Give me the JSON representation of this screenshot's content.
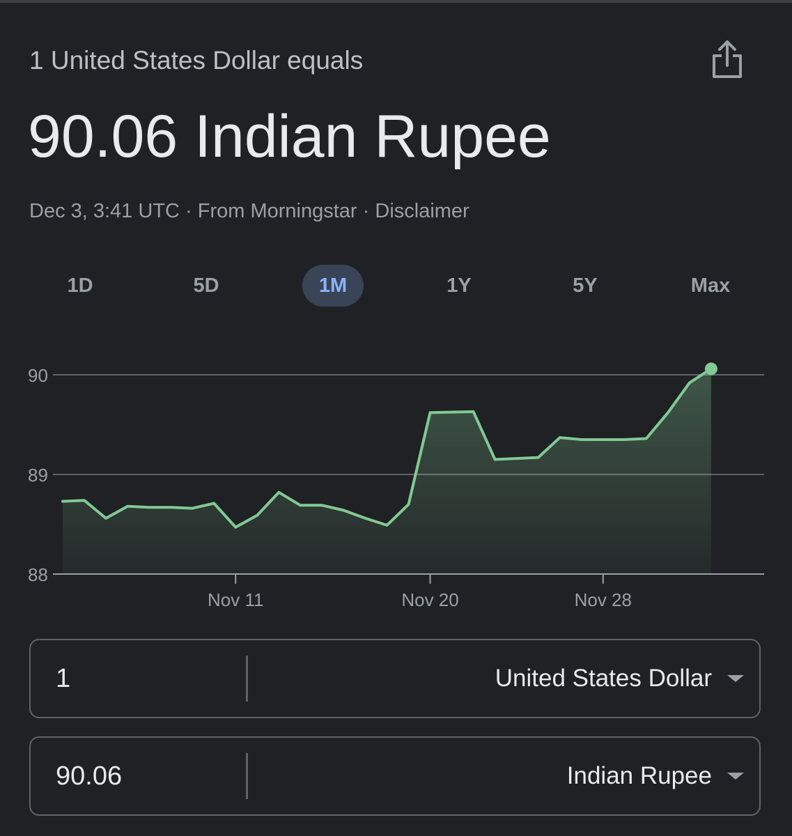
{
  "header": {
    "subtitle": "1 United States Dollar equals",
    "result": "90.06 Indian Rupee",
    "meta_time": "Dec 3, 3:41 UTC",
    "meta_sep1": " · ",
    "meta_source": "From Morningstar",
    "meta_sep2": " · ",
    "meta_disclaimer": "Disclaimer",
    "share_icon": "share-icon"
  },
  "tabs": [
    {
      "label": "1D",
      "active": false
    },
    {
      "label": "5D",
      "active": false
    },
    {
      "label": "1M",
      "active": true
    },
    {
      "label": "1Y",
      "active": false
    },
    {
      "label": "5Y",
      "active": false
    },
    {
      "label": "Max",
      "active": false
    }
  ],
  "chart_data": {
    "type": "area",
    "title": "",
    "xlabel": "",
    "ylabel": "",
    "ylim": [
      88,
      90
    ],
    "yticks": [
      "88",
      "89",
      "90"
    ],
    "xticks": [
      {
        "label": "Nov 11",
        "day": 11
      },
      {
        "label": "Nov 20",
        "day": 20
      },
      {
        "label": "Nov 28",
        "day": 28
      }
    ],
    "grid": true,
    "line_color": "#81c995",
    "x_start_day": 3,
    "x_end_day": 35,
    "series": [
      {
        "points": [
          [
            3,
            88.73
          ],
          [
            4,
            88.74
          ],
          [
            5,
            88.56
          ],
          [
            6,
            88.68
          ],
          [
            7,
            88.67
          ],
          [
            8,
            88.67
          ],
          [
            9,
            88.66
          ],
          [
            10,
            88.71
          ],
          [
            11,
            88.47
          ],
          [
            12,
            88.59
          ],
          [
            13,
            88.82
          ],
          [
            14,
            88.69
          ],
          [
            15,
            88.69
          ],
          [
            16,
            88.64
          ],
          [
            17,
            88.56
          ],
          [
            18,
            88.49
          ],
          [
            19,
            88.7
          ],
          [
            20,
            89.62
          ],
          [
            22,
            89.63
          ],
          [
            23,
            89.15
          ],
          [
            25,
            89.17
          ],
          [
            26,
            89.37
          ],
          [
            27,
            89.35
          ],
          [
            29,
            89.35
          ],
          [
            30,
            89.36
          ],
          [
            31,
            89.62
          ],
          [
            32,
            89.92
          ],
          [
            33,
            90.06
          ]
        ]
      }
    ]
  },
  "converter": {
    "from_amount": "1",
    "from_currency": "United States Dollar",
    "to_amount": "90.06",
    "to_currency": "Indian Rupee"
  }
}
